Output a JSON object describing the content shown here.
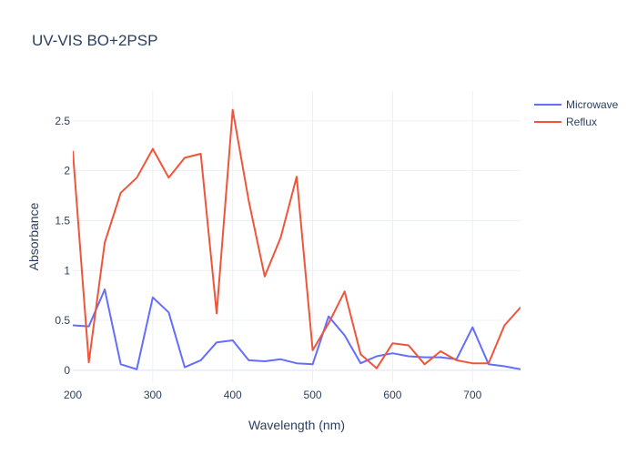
{
  "chart_data": {
    "type": "line",
    "title": "UV-VIS BO+2PSP",
    "xlabel": "Wavelength (nm)",
    "ylabel": "Absorbance",
    "xlim": [
      200,
      760
    ],
    "ylim": [
      -0.12,
      2.8
    ],
    "xticks": [
      200,
      300,
      400,
      500,
      600,
      700
    ],
    "yticks": [
      0,
      0.5,
      1,
      1.5,
      2,
      2.5
    ],
    "ytick_labels": [
      "0",
      "0.5",
      "1",
      "1.5",
      "2",
      "2.5"
    ],
    "grid": true,
    "legend_position": "top-right",
    "x": [
      200,
      220,
      240,
      260,
      280,
      300,
      320,
      340,
      360,
      380,
      400,
      420,
      440,
      460,
      480,
      500,
      520,
      540,
      560,
      580,
      600,
      620,
      640,
      660,
      680,
      700,
      720,
      740,
      760
    ],
    "series": [
      {
        "name": "Microwave",
        "color": "#636efa",
        "values": [
          0.45,
          0.44,
          0.81,
          0.06,
          0.01,
          0.73,
          0.58,
          0.03,
          0.1,
          0.28,
          0.3,
          0.1,
          0.09,
          0.11,
          0.07,
          0.06,
          0.54,
          0.35,
          0.07,
          0.14,
          0.17,
          0.14,
          0.13,
          0.13,
          0.11,
          0.43,
          0.06,
          0.04,
          0.01
        ]
      },
      {
        "name": "Reflux",
        "color": "#ef553b",
        "values": [
          2.2,
          0.08,
          1.28,
          1.78,
          1.93,
          2.22,
          1.93,
          2.13,
          2.17,
          0.57,
          2.61,
          1.7,
          0.94,
          1.33,
          1.94,
          0.2,
          0.47,
          0.79,
          0.16,
          0.02,
          0.27,
          0.25,
          0.06,
          0.19,
          0.1,
          0.07,
          0.07,
          0.45,
          0.63
        ]
      }
    ]
  }
}
